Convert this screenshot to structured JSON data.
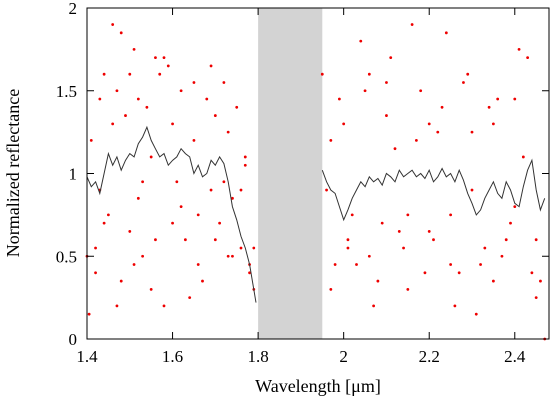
{
  "chart_data": {
    "type": "scatter",
    "title": "",
    "xlabel": "Wavelength [μm]",
    "ylabel": "Normalized reflectance",
    "xlim": [
      1.4,
      2.48
    ],
    "ylim": [
      0,
      2
    ],
    "x_ticks": [
      1.4,
      1.6,
      1.8,
      2,
      2.2,
      2.4
    ],
    "x_tick_labels": [
      "1.4",
      "1.6",
      "1.8",
      "2",
      "2.2",
      "2.4"
    ],
    "y_ticks": [
      0,
      0.5,
      1,
      1.5,
      2
    ],
    "y_tick_labels": [
      "0",
      "0.5",
      "1",
      "1.5",
      "2"
    ],
    "grid": false,
    "legend": false,
    "shaded_region": {
      "x": [
        1.8,
        1.95
      ],
      "color": "#d3d3d3"
    },
    "series": [
      {
        "kind": "scatter",
        "color": "#ee0000",
        "segments": [
          {
            "x": [
              1.405,
              1.42,
              1.43,
              1.44,
              1.46,
              1.48,
              1.5,
              1.52,
              1.55,
              1.58,
              1.62,
              1.65,
              1.7,
              1.72,
              1.75,
              1.78,
              1.79,
              1.41,
              1.43,
              1.47,
              1.51,
              1.56,
              1.6,
              1.66,
              1.69,
              1.74,
              1.77,
              1.45,
              1.49,
              1.53,
              1.57,
              1.61,
              1.64,
              1.68,
              1.71,
              1.73,
              1.76,
              1.42,
              1.47,
              1.52,
              1.55,
              1.59,
              1.63,
              1.67,
              1.7,
              1.74,
              1.78,
              1.44,
              1.5,
              1.54,
              1.58,
              1.62,
              1.66,
              1.72,
              1.76,
              1.79,
              1.4,
              1.46,
              1.51,
              1.56,
              1.6,
              1.65,
              1.69,
              1.73,
              1.77,
              1.48,
              1.53
            ],
            "y": [
              0.15,
              0.55,
              1.45,
              0.7,
              1.9,
              0.35,
              1.6,
              1.45,
              0.3,
              1.7,
              0.8,
              1.55,
              0.6,
              0.95,
              1.4,
              0.45,
              0.3,
              1.2,
              0.9,
              0.2,
              1.75,
              0.6,
              1.3,
              0.45,
              1.65,
              0.85,
              1.1,
              0.75,
              1.35,
              0.5,
              1.6,
              0.95,
              0.25,
              1.45,
              0.7,
              1.25,
              0.55,
              0.4,
              1.5,
              0.85,
              1.1,
              1.65,
              0.6,
              0.35,
              1.35,
              0.5,
              0.4,
              1.6,
              0.65,
              1.4,
              0.2,
              1.5,
              0.75,
              1.55,
              0.9,
              0.55,
              0.5,
              1.3,
              0.45,
              1.7,
              0.7,
              1.2,
              0.9,
              0.5,
              1.05,
              1.85,
              0.95
            ]
          },
          {
            "x": [
              1.95,
              1.97,
              1.99,
              2.01,
              2.04,
              2.07,
              2.1,
              2.13,
              2.16,
              2.19,
              2.22,
              2.25,
              2.28,
              2.31,
              2.34,
              2.37,
              2.4,
              2.43,
              2.46,
              2.47,
              1.96,
              2.0,
              2.03,
              2.06,
              2.09,
              2.12,
              2.15,
              2.18,
              2.21,
              2.24,
              2.27,
              2.3,
              2.33,
              2.36,
              2.39,
              2.42,
              2.45,
              1.98,
              2.02,
              2.05,
              2.08,
              2.11,
              2.14,
              2.17,
              2.2,
              2.23,
              2.26,
              2.29,
              2.32,
              2.35,
              2.38,
              2.41,
              2.44,
              1.97,
              2.01,
              2.06,
              2.1,
              2.15,
              2.2,
              2.25,
              2.3,
              2.35,
              2.4,
              2.45
            ],
            "y": [
              1.6,
              0.3,
              1.45,
              0.55,
              1.8,
              0.2,
              1.35,
              0.65,
              1.9,
              0.4,
              1.25,
              0.75,
              1.55,
              0.15,
              1.4,
              0.5,
              0.8,
              1.7,
              0.35,
              0.0,
              0.9,
              1.3,
              0.45,
              1.6,
              0.7,
              1.15,
              0.3,
              1.5,
              0.6,
              1.85,
              0.4,
              1.25,
              0.55,
              1.45,
              0.7,
              1.1,
              0.25,
              0.45,
              0.75,
              1.5,
              0.35,
              1.7,
              0.55,
              1.2,
              0.65,
              1.4,
              0.2,
              1.6,
              0.45,
              1.3,
              0.6,
              1.75,
              0.4,
              1.2,
              0.6,
              0.5,
              1.55,
              0.75,
              1.3,
              0.45,
              0.9,
              0.35,
              1.45,
              0.6
            ]
          }
        ]
      },
      {
        "kind": "line",
        "color": "#333333",
        "segments": [
          {
            "x": [
              1.4,
              1.41,
              1.42,
              1.43,
              1.44,
              1.45,
              1.46,
              1.47,
              1.48,
              1.49,
              1.5,
              1.51,
              1.52,
              1.53,
              1.54,
              1.55,
              1.56,
              1.57,
              1.58,
              1.59,
              1.6,
              1.61,
              1.62,
              1.63,
              1.64,
              1.65,
              1.66,
              1.67,
              1.68,
              1.69,
              1.7,
              1.71,
              1.72,
              1.73,
              1.74,
              1.75,
              1.76,
              1.77,
              1.78,
              1.79,
              1.795
            ],
            "y": [
              0.98,
              0.92,
              0.95,
              0.88,
              1.0,
              1.12,
              1.05,
              1.1,
              1.02,
              1.08,
              1.12,
              1.1,
              1.18,
              1.22,
              1.28,
              1.2,
              1.15,
              1.1,
              1.12,
              1.05,
              1.08,
              1.1,
              1.15,
              1.12,
              1.1,
              1.0,
              1.05,
              0.98,
              1.0,
              1.08,
              1.05,
              1.1,
              1.06,
              0.95,
              0.8,
              0.72,
              0.62,
              0.55,
              0.45,
              0.3,
              0.22
            ]
          },
          {
            "x": [
              1.95,
              1.96,
              1.97,
              1.98,
              1.99,
              2.0,
              2.01,
              2.02,
              2.03,
              2.04,
              2.05,
              2.06,
              2.07,
              2.08,
              2.09,
              2.1,
              2.11,
              2.12,
              2.13,
              2.14,
              2.15,
              2.16,
              2.17,
              2.18,
              2.19,
              2.2,
              2.21,
              2.22,
              2.23,
              2.24,
              2.25,
              2.26,
              2.27,
              2.28,
              2.29,
              2.3,
              2.31,
              2.32,
              2.33,
              2.34,
              2.35,
              2.36,
              2.37,
              2.38,
              2.39,
              2.4,
              2.41,
              2.42,
              2.43,
              2.44,
              2.45,
              2.46,
              2.47
            ],
            "y": [
              1.02,
              0.95,
              0.9,
              0.88,
              0.8,
              0.72,
              0.78,
              0.85,
              0.9,
              0.95,
              0.92,
              0.98,
              0.95,
              0.97,
              0.93,
              1.0,
              0.98,
              0.95,
              1.02,
              0.98,
              1.0,
              1.02,
              0.98,
              1.0,
              0.97,
              1.02,
              0.95,
              0.98,
              1.03,
              0.98,
              1.0,
              0.95,
              1.02,
              0.96,
              0.88,
              0.82,
              0.75,
              0.78,
              0.85,
              0.9,
              0.95,
              0.88,
              0.85,
              0.95,
              0.9,
              0.82,
              0.8,
              0.92,
              1.02,
              1.08,
              0.9,
              0.78,
              0.85
            ]
          }
        ]
      }
    ]
  }
}
